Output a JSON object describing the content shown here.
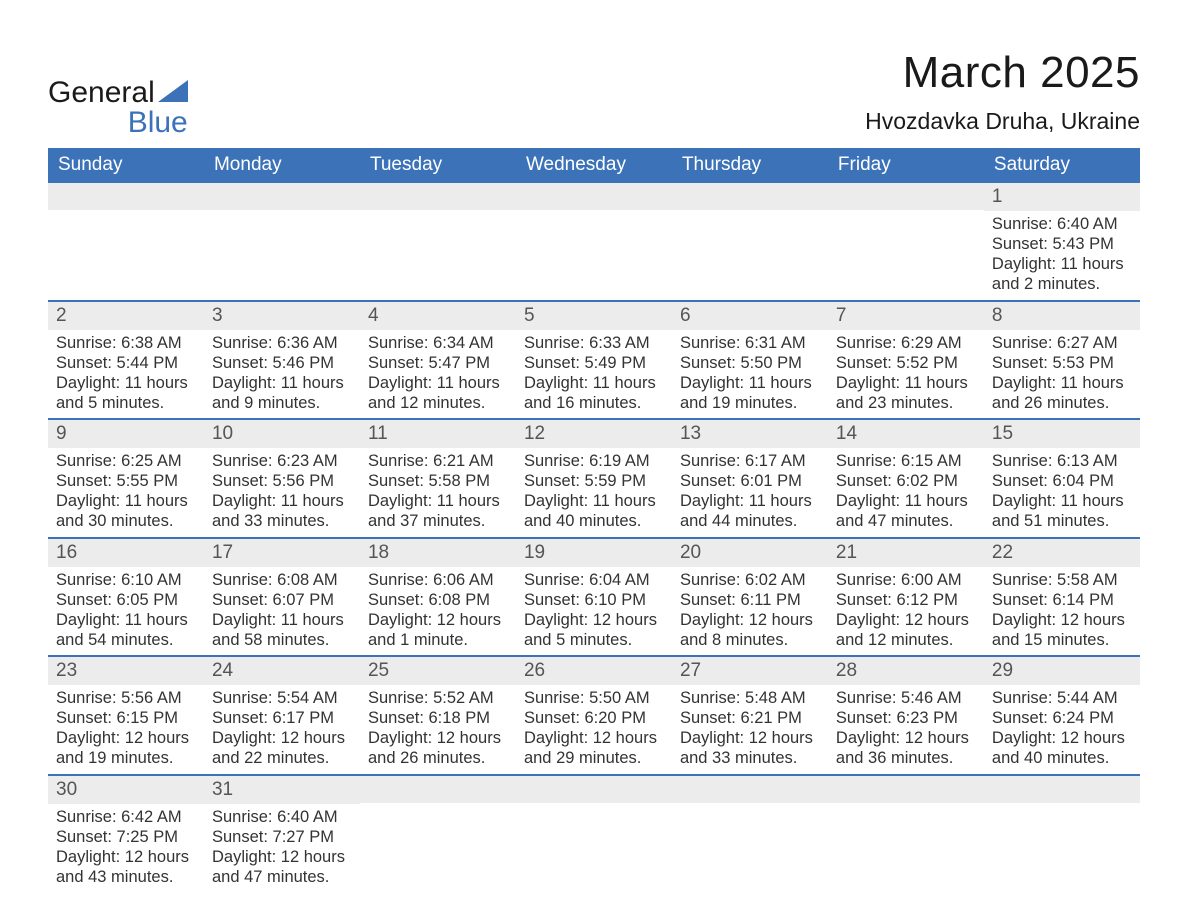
{
  "brand": {
    "primary": "General",
    "secondary": "Blue"
  },
  "title": "March 2025",
  "location": "Hvozdavka Druha, Ukraine",
  "colors": {
    "header_bg": "#3b72b8",
    "header_text": "#ffffff",
    "daynum_bg": "#ececec",
    "text": "#333333",
    "row_divider": "#3b72b8",
    "page_bg": "#ffffff"
  },
  "typography": {
    "title_fontsize": 44,
    "location_fontsize": 23,
    "header_fontsize": 19,
    "daynum_fontsize": 19,
    "detail_fontsize": 16.5
  },
  "weekdays": [
    "Sunday",
    "Monday",
    "Tuesday",
    "Wednesday",
    "Thursday",
    "Friday",
    "Saturday"
  ],
  "weeks": [
    [
      null,
      null,
      null,
      null,
      null,
      null,
      {
        "n": "1",
        "sr": "Sunrise: 6:40 AM",
        "ss": "Sunset: 5:43 PM",
        "d1": "Daylight: 11 hours",
        "d2": "and 2 minutes."
      }
    ],
    [
      {
        "n": "2",
        "sr": "Sunrise: 6:38 AM",
        "ss": "Sunset: 5:44 PM",
        "d1": "Daylight: 11 hours",
        "d2": "and 5 minutes."
      },
      {
        "n": "3",
        "sr": "Sunrise: 6:36 AM",
        "ss": "Sunset: 5:46 PM",
        "d1": "Daylight: 11 hours",
        "d2": "and 9 minutes."
      },
      {
        "n": "4",
        "sr": "Sunrise: 6:34 AM",
        "ss": "Sunset: 5:47 PM",
        "d1": "Daylight: 11 hours",
        "d2": "and 12 minutes."
      },
      {
        "n": "5",
        "sr": "Sunrise: 6:33 AM",
        "ss": "Sunset: 5:49 PM",
        "d1": "Daylight: 11 hours",
        "d2": "and 16 minutes."
      },
      {
        "n": "6",
        "sr": "Sunrise: 6:31 AM",
        "ss": "Sunset: 5:50 PM",
        "d1": "Daylight: 11 hours",
        "d2": "and 19 minutes."
      },
      {
        "n": "7",
        "sr": "Sunrise: 6:29 AM",
        "ss": "Sunset: 5:52 PM",
        "d1": "Daylight: 11 hours",
        "d2": "and 23 minutes."
      },
      {
        "n": "8",
        "sr": "Sunrise: 6:27 AM",
        "ss": "Sunset: 5:53 PM",
        "d1": "Daylight: 11 hours",
        "d2": "and 26 minutes."
      }
    ],
    [
      {
        "n": "9",
        "sr": "Sunrise: 6:25 AM",
        "ss": "Sunset: 5:55 PM",
        "d1": "Daylight: 11 hours",
        "d2": "and 30 minutes."
      },
      {
        "n": "10",
        "sr": "Sunrise: 6:23 AM",
        "ss": "Sunset: 5:56 PM",
        "d1": "Daylight: 11 hours",
        "d2": "and 33 minutes."
      },
      {
        "n": "11",
        "sr": "Sunrise: 6:21 AM",
        "ss": "Sunset: 5:58 PM",
        "d1": "Daylight: 11 hours",
        "d2": "and 37 minutes."
      },
      {
        "n": "12",
        "sr": "Sunrise: 6:19 AM",
        "ss": "Sunset: 5:59 PM",
        "d1": "Daylight: 11 hours",
        "d2": "and 40 minutes."
      },
      {
        "n": "13",
        "sr": "Sunrise: 6:17 AM",
        "ss": "Sunset: 6:01 PM",
        "d1": "Daylight: 11 hours",
        "d2": "and 44 minutes."
      },
      {
        "n": "14",
        "sr": "Sunrise: 6:15 AM",
        "ss": "Sunset: 6:02 PM",
        "d1": "Daylight: 11 hours",
        "d2": "and 47 minutes."
      },
      {
        "n": "15",
        "sr": "Sunrise: 6:13 AM",
        "ss": "Sunset: 6:04 PM",
        "d1": "Daylight: 11 hours",
        "d2": "and 51 minutes."
      }
    ],
    [
      {
        "n": "16",
        "sr": "Sunrise: 6:10 AM",
        "ss": "Sunset: 6:05 PM",
        "d1": "Daylight: 11 hours",
        "d2": "and 54 minutes."
      },
      {
        "n": "17",
        "sr": "Sunrise: 6:08 AM",
        "ss": "Sunset: 6:07 PM",
        "d1": "Daylight: 11 hours",
        "d2": "and 58 minutes."
      },
      {
        "n": "18",
        "sr": "Sunrise: 6:06 AM",
        "ss": "Sunset: 6:08 PM",
        "d1": "Daylight: 12 hours",
        "d2": "and 1 minute."
      },
      {
        "n": "19",
        "sr": "Sunrise: 6:04 AM",
        "ss": "Sunset: 6:10 PM",
        "d1": "Daylight: 12 hours",
        "d2": "and 5 minutes."
      },
      {
        "n": "20",
        "sr": "Sunrise: 6:02 AM",
        "ss": "Sunset: 6:11 PM",
        "d1": "Daylight: 12 hours",
        "d2": "and 8 minutes."
      },
      {
        "n": "21",
        "sr": "Sunrise: 6:00 AM",
        "ss": "Sunset: 6:12 PM",
        "d1": "Daylight: 12 hours",
        "d2": "and 12 minutes."
      },
      {
        "n": "22",
        "sr": "Sunrise: 5:58 AM",
        "ss": "Sunset: 6:14 PM",
        "d1": "Daylight: 12 hours",
        "d2": "and 15 minutes."
      }
    ],
    [
      {
        "n": "23",
        "sr": "Sunrise: 5:56 AM",
        "ss": "Sunset: 6:15 PM",
        "d1": "Daylight: 12 hours",
        "d2": "and 19 minutes."
      },
      {
        "n": "24",
        "sr": "Sunrise: 5:54 AM",
        "ss": "Sunset: 6:17 PM",
        "d1": "Daylight: 12 hours",
        "d2": "and 22 minutes."
      },
      {
        "n": "25",
        "sr": "Sunrise: 5:52 AM",
        "ss": "Sunset: 6:18 PM",
        "d1": "Daylight: 12 hours",
        "d2": "and 26 minutes."
      },
      {
        "n": "26",
        "sr": "Sunrise: 5:50 AM",
        "ss": "Sunset: 6:20 PM",
        "d1": "Daylight: 12 hours",
        "d2": "and 29 minutes."
      },
      {
        "n": "27",
        "sr": "Sunrise: 5:48 AM",
        "ss": "Sunset: 6:21 PM",
        "d1": "Daylight: 12 hours",
        "d2": "and 33 minutes."
      },
      {
        "n": "28",
        "sr": "Sunrise: 5:46 AM",
        "ss": "Sunset: 6:23 PM",
        "d1": "Daylight: 12 hours",
        "d2": "and 36 minutes."
      },
      {
        "n": "29",
        "sr": "Sunrise: 5:44 AM",
        "ss": "Sunset: 6:24 PM",
        "d1": "Daylight: 12 hours",
        "d2": "and 40 minutes."
      }
    ],
    [
      {
        "n": "30",
        "sr": "Sunrise: 6:42 AM",
        "ss": "Sunset: 7:25 PM",
        "d1": "Daylight: 12 hours",
        "d2": "and 43 minutes."
      },
      {
        "n": "31",
        "sr": "Sunrise: 6:40 AM",
        "ss": "Sunset: 7:27 PM",
        "d1": "Daylight: 12 hours",
        "d2": "and 47 minutes."
      },
      null,
      null,
      null,
      null,
      null
    ]
  ]
}
